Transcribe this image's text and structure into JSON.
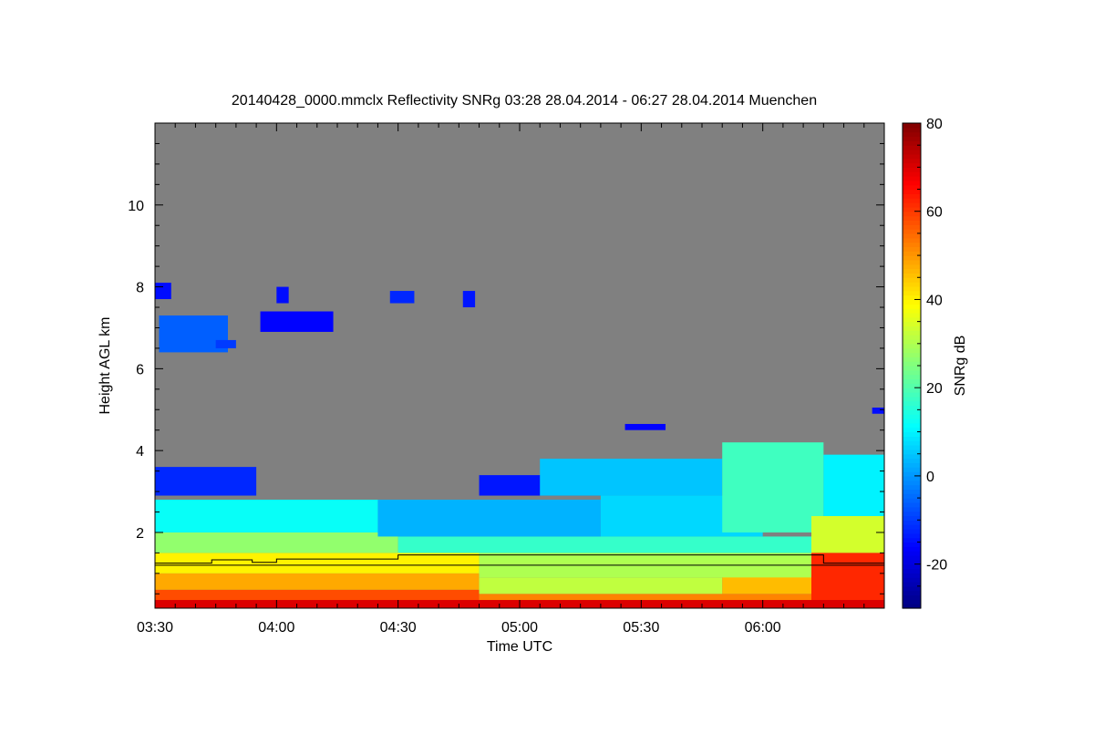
{
  "chart_data": {
    "type": "heatmap",
    "title": "20140428_0000.mmclx Reflectivity SNRg   03:28 28.04.2014 - 06:27 28.04.2014 Muenchen",
    "xlabel": "Time UTC",
    "ylabel": "Height AGL km",
    "colorbar_label": "SNRg dB",
    "x_range_minutes_after_0330": [
      0,
      180
    ],
    "ylim": [
      0.15,
      12
    ],
    "clim": [
      -30,
      80
    ],
    "x_ticks": [
      {
        "m": 0,
        "label": "03:30"
      },
      {
        "m": 30,
        "label": "04:00"
      },
      {
        "m": 60,
        "label": "04:30"
      },
      {
        "m": 90,
        "label": "05:00"
      },
      {
        "m": 120,
        "label": "05:30"
      },
      {
        "m": 150,
        "label": "06:00"
      }
    ],
    "y_ticks": [
      {
        "v": 2,
        "label": "2"
      },
      {
        "v": 4,
        "label": "4"
      },
      {
        "v": 6,
        "label": "6"
      },
      {
        "v": 8,
        "label": "8"
      },
      {
        "v": 10,
        "label": "10"
      }
    ],
    "c_ticks": [
      {
        "v": -20,
        "label": "-20"
      },
      {
        "v": 0,
        "label": "0"
      },
      {
        "v": 20,
        "label": "20"
      },
      {
        "v": 40,
        "label": "40"
      },
      {
        "v": 60,
        "label": "60"
      },
      {
        "v": 80,
        "label": "80"
      }
    ],
    "no_signal_color": "#808080",
    "echo_regions": [
      {
        "t": [
          0,
          180
        ],
        "h": [
          0.15,
          0.35
        ],
        "snr": 70
      },
      {
        "t": [
          0,
          80
        ],
        "h": [
          0.35,
          0.6
        ],
        "snr": 58
      },
      {
        "t": [
          80,
          162
        ],
        "h": [
          0.35,
          0.5
        ],
        "snr": 52
      },
      {
        "t": [
          0,
          80
        ],
        "h": [
          0.6,
          1.0
        ],
        "snr": 48
      },
      {
        "t": [
          80,
          140
        ],
        "h": [
          0.5,
          0.9
        ],
        "snr": 32
      },
      {
        "t": [
          140,
          162
        ],
        "h": [
          0.5,
          1.2
        ],
        "snr": 46
      },
      {
        "t": [
          0,
          80
        ],
        "h": [
          1.0,
          1.5
        ],
        "snr": 40
      },
      {
        "t": [
          80,
          162
        ],
        "h": [
          0.9,
          1.5
        ],
        "snr": 30
      },
      {
        "t": [
          0,
          60
        ],
        "h": [
          1.5,
          2.0
        ],
        "snr": 27
      },
      {
        "t": [
          60,
          162
        ],
        "h": [
          1.5,
          1.9
        ],
        "snr": 17
      },
      {
        "t": [
          0,
          55
        ],
        "h": [
          2.0,
          2.8
        ],
        "snr": 12
      },
      {
        "t": [
          55,
          110
        ],
        "h": [
          1.9,
          2.8
        ],
        "snr": 3
      },
      {
        "t": [
          110,
          150
        ],
        "h": [
          1.9,
          2.9
        ],
        "snr": 7
      },
      {
        "t": [
          80,
          110
        ],
        "h": [
          2.9,
          3.4
        ],
        "snr": -14
      },
      {
        "t": [
          95,
          140
        ],
        "h": [
          2.9,
          3.8
        ],
        "snr": 5
      },
      {
        "t": [
          140,
          165
        ],
        "h": [
          2.0,
          4.2
        ],
        "snr": 18
      },
      {
        "t": [
          165,
          180
        ],
        "h": [
          2.4,
          3.9
        ],
        "snr": 10
      },
      {
        "t": [
          162,
          180
        ],
        "h": [
          1.5,
          2.4
        ],
        "snr": 34
      },
      {
        "t": [
          162,
          180
        ],
        "h": [
          0.35,
          1.5
        ],
        "snr": 62
      },
      {
        "t": [
          0,
          25
        ],
        "h": [
          2.9,
          3.6
        ],
        "snr": -12
      },
      {
        "t": [
          0,
          4
        ],
        "h": [
          7.7,
          8.1
        ],
        "snr": -15
      },
      {
        "t": [
          1,
          18
        ],
        "h": [
          6.4,
          7.3
        ],
        "snr": -6
      },
      {
        "t": [
          15,
          20
        ],
        "h": [
          6.5,
          6.7
        ],
        "snr": -10
      },
      {
        "t": [
          26,
          44
        ],
        "h": [
          6.9,
          7.4
        ],
        "snr": -16
      },
      {
        "t": [
          30,
          33
        ],
        "h": [
          7.6,
          8.0
        ],
        "snr": -15
      },
      {
        "t": [
          58,
          64
        ],
        "h": [
          7.6,
          7.9
        ],
        "snr": -12
      },
      {
        "t": [
          76,
          79
        ],
        "h": [
          7.5,
          7.9
        ],
        "snr": -14
      },
      {
        "t": [
          116,
          126
        ],
        "h": [
          4.5,
          4.65
        ],
        "snr": -16
      },
      {
        "t": [
          177,
          180
        ],
        "h": [
          4.9,
          5.05
        ],
        "snr": -15
      }
    ],
    "overlay_lines": [
      {
        "name": "flat-line",
        "points": [
          [
            0,
            1.2
          ],
          [
            180,
            1.2
          ]
        ]
      },
      {
        "name": "step-line",
        "points": [
          [
            0,
            1.25
          ],
          [
            14,
            1.25
          ],
          [
            14,
            1.33
          ],
          [
            24,
            1.33
          ],
          [
            24,
            1.27
          ],
          [
            30,
            1.27
          ],
          [
            30,
            1.35
          ],
          [
            60,
            1.35
          ],
          [
            60,
            1.45
          ],
          [
            165,
            1.45
          ],
          [
            165,
            1.25
          ],
          [
            180,
            1.25
          ]
        ]
      }
    ]
  }
}
